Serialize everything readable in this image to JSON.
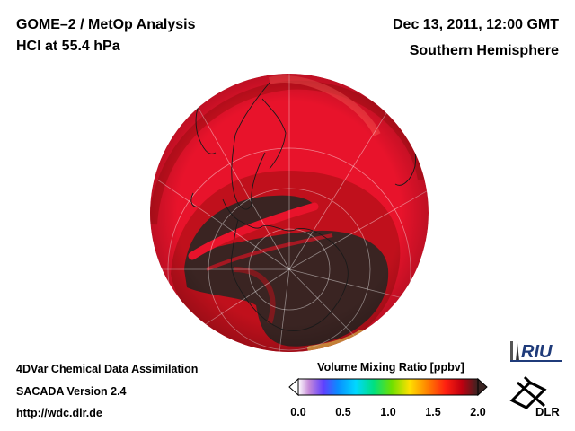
{
  "header": {
    "title": "GOME–2 / MetOp Analysis",
    "subtitle": "HCl at 55.4 hPa",
    "date": "Dec 13, 2011, 12:00 GMT",
    "region": "Southern Hemisphere"
  },
  "footer": {
    "line1": "4DVar Chemical Data Assimilation",
    "line2": "SACADA Version 2.4",
    "line3": "http://wdc.dlr.de"
  },
  "colorbar": {
    "title": "Volume Mixing Ratio [ppbv]",
    "ticks": [
      "0.0",
      "0.5",
      "1.0",
      "1.5",
      "2.0"
    ]
  },
  "logos": {
    "riu": "RIU",
    "dlr": "DLR"
  },
  "colors": {
    "high": "#e8132b",
    "mid_red": "#c0101c",
    "low": "#3a2422",
    "land": "#1a1a1a"
  }
}
